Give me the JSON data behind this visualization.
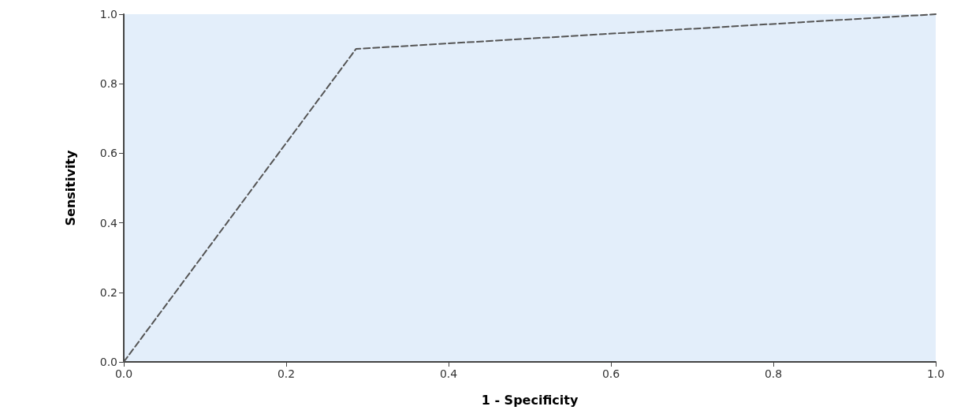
{
  "chart_data": {
    "type": "line",
    "xlabel": "1 - Specificity",
    "ylabel": "Sensitivity",
    "series": [
      {
        "color": "#555555",
        "x": [
          0,
          0.286,
          1
        ],
        "values": [
          0,
          0.9,
          1
        ]
      }
    ],
    "xlim": [
      0,
      1
    ],
    "ylim": [
      0,
      1
    ],
    "xticks": [
      {
        "value": 0,
        "label": "0.0"
      },
      {
        "value": 0.2,
        "label": "0.2"
      },
      {
        "value": 0.4,
        "label": "0.4"
      },
      {
        "value": 0.6,
        "label": "0.6"
      },
      {
        "value": 0.8,
        "label": "0.8"
      },
      {
        "value": 1,
        "label": "1.0"
      }
    ],
    "yticks": [
      {
        "value": 0,
        "label": "0.0"
      },
      {
        "value": 0.2,
        "label": "0.2"
      },
      {
        "value": 0.4,
        "label": "0.4"
      },
      {
        "value": 0.6,
        "label": "0.6"
      },
      {
        "value": 0.8,
        "label": "0.8"
      },
      {
        "value": 1,
        "label": "1.0"
      }
    ],
    "grid": false,
    "marker": "none",
    "line_style": "dashed"
  }
}
